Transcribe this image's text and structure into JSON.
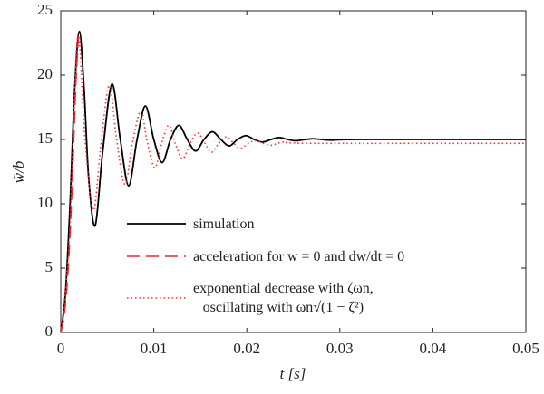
{
  "chart_data": {
    "type": "line",
    "xlabel": "t [s]",
    "ylabel": "w̃/b",
    "xlim": [
      0,
      0.05
    ],
    "xticks": [
      0,
      0.01,
      0.02,
      0.03,
      0.04,
      0.05
    ],
    "ylim": [
      0,
      25
    ],
    "yticks": [
      0,
      5,
      10,
      15,
      20,
      25
    ],
    "grid": false,
    "legend": "center right",
    "series": [
      {
        "name": "simulation",
        "color": "#000000",
        "style": "solid",
        "x": [
          0,
          0.0005,
          0.001,
          0.0015,
          0.002,
          0.0025,
          0.003,
          0.0037,
          0.0045,
          0.0055,
          0.0064,
          0.0073,
          0.0082,
          0.0091,
          0.01,
          0.0109,
          0.0118,
          0.0127,
          0.0136,
          0.0145,
          0.0154,
          0.0163,
          0.0172,
          0.0181,
          0.019,
          0.0199,
          0.0208,
          0.0217,
          0.0226,
          0.0235,
          0.0244,
          0.0253,
          0.027,
          0.029,
          0.032,
          0.05
        ],
        "values": [
          0,
          3,
          10,
          19,
          23.4,
          19,
          12,
          8.3,
          14,
          19.3,
          15,
          11.4,
          15,
          17.6,
          15,
          13.2,
          15,
          16.1,
          15,
          14.1,
          15,
          15.6,
          15,
          14.5,
          15,
          15.3,
          15,
          14.8,
          15,
          15.15,
          15,
          14.9,
          15.05,
          14.95,
          15,
          15
        ]
      },
      {
        "name": "acceleration for w = 0 and dw/dt = 0",
        "color": "#e8282b",
        "style": "dashed",
        "x": [
          0,
          0.0004,
          0.0008,
          0.0012,
          0.0016,
          0.0019
        ],
        "values": [
          0,
          1.5,
          5,
          11,
          19,
          23
        ]
      },
      {
        "name": "exponential decrease with ζωn,\noscillating with ωn√(1 − ζ²)",
        "color": "#ff3030",
        "style": "dotted",
        "x": [
          0,
          0.0009,
          0.0018,
          0.0026,
          0.0035,
          0.0043,
          0.0052,
          0.006,
          0.0069,
          0.0077,
          0.0086,
          0.0093,
          0.0101,
          0.0108,
          0.0116,
          0.0123,
          0.0131,
          0.0139,
          0.0147,
          0.0155,
          0.0162,
          0.017,
          0.0178,
          0.0186,
          0.0193,
          0.0202,
          0.021,
          0.0225,
          0.024,
          0.027,
          0.05
        ],
        "values": [
          0,
          7,
          23,
          15,
          9.5,
          14.5,
          19.2,
          15,
          11.5,
          14.7,
          17.2,
          14.8,
          12.8,
          14.6,
          16.1,
          14.7,
          13.5,
          14.7,
          15.5,
          14.7,
          14,
          14.7,
          15.2,
          14.7,
          14.3,
          14.7,
          14.9,
          14.55,
          14.8,
          14.7,
          14.7
        ]
      }
    ]
  }
}
